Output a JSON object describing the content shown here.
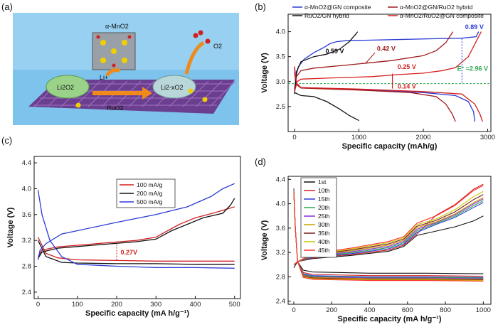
{
  "panel_labels": {
    "a": "(a)",
    "b": "(b)",
    "c": "(c)",
    "d": "(d)"
  },
  "illustration": {
    "catalyst": "α-MnO2",
    "li_ion": "Li+",
    "discharge_product_1": "Li2O2",
    "discharge_product_2": "Li2-xO2",
    "oxygen": "O2",
    "support": "RuO2"
  },
  "colors": {
    "blue": "#2a3bd6",
    "red": "#d42020",
    "darkred": "#a01a1a",
    "black": "#111111",
    "green": "#2fa84f"
  },
  "chart_data": [
    {
      "id": "b",
      "type": "line",
      "xlabel": "Specific capacity (mAh/g)",
      "ylabel": "Voltage (V)",
      "xlim": [
        -100,
        3050
      ],
      "ylim": [
        2.0,
        4.35
      ],
      "xticks": [
        0,
        1000,
        2000,
        3000
      ],
      "yticks": [
        2.5,
        3.0,
        3.5,
        4.0
      ],
      "legend": [
        {
          "name": "α-MnO2@GN composite",
          "color": "#2a3bd6"
        },
        {
          "name": "α-MnO2@GN/RuO2 hybrid",
          "color": "#a01a1a"
        },
        {
          "name": "RuO2/GN hybrid",
          "color": "#111111"
        },
        {
          "name": "α-MnO2/RuO2@GN composite",
          "color": "#d42020"
        }
      ],
      "series": [
        {
          "name": "α-MnO2@GN composite (charge)",
          "color": "#2a3bd6",
          "points": [
            [
              0,
              2.82
            ],
            [
              20,
              3.1
            ],
            [
              60,
              3.3
            ],
            [
              150,
              3.45
            ],
            [
              300,
              3.58
            ],
            [
              450,
              3.68
            ],
            [
              550,
              3.76
            ],
            [
              650,
              3.8
            ],
            [
              800,
              3.82
            ],
            [
              1500,
              3.84
            ],
            [
              2200,
              3.86
            ],
            [
              2600,
              3.87
            ],
            [
              2820,
              3.9
            ],
            [
              2860,
              4.0
            ]
          ]
        },
        {
          "name": "α-MnO2@GN composite (discharge)",
          "color": "#2a3bd6",
          "points": [
            [
              0,
              3.2
            ],
            [
              20,
              2.95
            ],
            [
              100,
              2.88
            ],
            [
              1000,
              2.84
            ],
            [
              2000,
              2.78
            ],
            [
              2500,
              2.72
            ],
            [
              2700,
              2.6
            ],
            [
              2780,
              2.4
            ],
            [
              2800,
              2.2
            ]
          ]
        },
        {
          "name": "α-MnO2@GN/RuO2 hybrid (charge)",
          "color": "#a01a1a",
          "points": [
            [
              0,
              2.85
            ],
            [
              30,
              3.1
            ],
            [
              100,
              3.22
            ],
            [
              300,
              3.27
            ],
            [
              800,
              3.33
            ],
            [
              1500,
              3.42
            ],
            [
              2000,
              3.52
            ],
            [
              2200,
              3.62
            ],
            [
              2350,
              3.78
            ],
            [
              2420,
              3.92
            ],
            [
              2460,
              4.0
            ]
          ]
        },
        {
          "name": "α-MnO2@GN/RuO2 hybrid (discharge)",
          "color": "#a01a1a",
          "points": [
            [
              0,
              3.3
            ],
            [
              20,
              2.95
            ],
            [
              100,
              2.87
            ],
            [
              1000,
              2.83
            ],
            [
              1800,
              2.78
            ],
            [
              2200,
              2.7
            ],
            [
              2350,
              2.55
            ],
            [
              2450,
              2.35
            ],
            [
              2500,
              2.2
            ]
          ]
        },
        {
          "name": "RuO2/GN hybrid (charge)",
          "color": "#111111",
          "points": [
            [
              0,
              2.75
            ],
            [
              30,
              3.2
            ],
            [
              100,
              3.4
            ],
            [
              300,
              3.5
            ],
            [
              500,
              3.55
            ],
            [
              700,
              3.65
            ],
            [
              850,
              3.8
            ],
            [
              950,
              3.95
            ],
            [
              980,
              4.0
            ]
          ]
        },
        {
          "name": "RuO2/GN hybrid (discharge)",
          "color": "#111111",
          "points": [
            [
              0,
              2.78
            ],
            [
              100,
              2.72
            ],
            [
              300,
              2.7
            ],
            [
              500,
              2.6
            ],
            [
              700,
              2.45
            ],
            [
              850,
              2.32
            ],
            [
              1000,
              2.22
            ]
          ]
        },
        {
          "name": "α-MnO2/RuO2@GN composite (charge)",
          "color": "#d42020",
          "points": [
            [
              0,
              2.8
            ],
            [
              40,
              3.0
            ],
            [
              100,
              3.05
            ],
            [
              500,
              3.07
            ],
            [
              1200,
              3.1
            ],
            [
              1600,
              3.14
            ],
            [
              2000,
              3.17
            ],
            [
              2300,
              3.22
            ],
            [
              2500,
              3.28
            ],
            [
              2700,
              3.5
            ],
            [
              2800,
              3.75
            ],
            [
              2900,
              4.0
            ]
          ]
        },
        {
          "name": "α-MnO2/RuO2@GN composite (discharge)",
          "color": "#d42020",
          "points": [
            [
              0,
              3.3
            ],
            [
              30,
              2.97
            ],
            [
              100,
              2.88
            ],
            [
              1000,
              2.85
            ],
            [
              2000,
              2.8
            ],
            [
              2600,
              2.75
            ],
            [
              2800,
              2.55
            ],
            [
              2880,
              2.35
            ],
            [
              2920,
              2.2
            ]
          ]
        }
      ],
      "reference_line": {
        "y": 2.96,
        "label": "E° =2.96 V",
        "color": "#2fa84f"
      },
      "annotations": [
        {
          "text": "0.89 V",
          "x": 2650,
          "y": 4.05,
          "color": "#2a3bd6"
        },
        {
          "text": "0.59 V",
          "x": 480,
          "y": 3.57,
          "color": "#111111"
        },
        {
          "text": "0.42 V",
          "x": 1280,
          "y": 3.62,
          "color": "#a01a1a"
        },
        {
          "text": "0.25 V",
          "x": 1600,
          "y": 3.25,
          "color": "#d42020"
        },
        {
          "text": "0.14 V",
          "x": 1600,
          "y": 2.86,
          "color": "#d42020"
        }
      ]
    },
    {
      "id": "c",
      "type": "line",
      "xlabel": "Specific capacity (mA h/g⁻¹)",
      "ylabel": "Voltage (V)",
      "xlim": [
        -10,
        515
      ],
      "ylim": [
        2.3,
        4.5
      ],
      "xticks": [
        0,
        100,
        200,
        300,
        400,
        500
      ],
      "yticks": [
        2.4,
        2.8,
        3.2,
        3.6,
        4.0,
        4.4
      ],
      "legend": [
        {
          "name": "100 mA/g",
          "color": "#d42020"
        },
        {
          "name": "200 mA/g",
          "color": "#111111"
        },
        {
          "name": "500 mA/g",
          "color": "#2a3bd6"
        }
      ],
      "series": [
        {
          "name": "100 mA/g (charge)",
          "color": "#d42020",
          "points": [
            [
              0,
              2.95
            ],
            [
              10,
              3.05
            ],
            [
              50,
              3.1
            ],
            [
              150,
              3.15
            ],
            [
              250,
              3.2
            ],
            [
              300,
              3.25
            ],
            [
              330,
              3.35
            ],
            [
              360,
              3.45
            ],
            [
              400,
              3.55
            ],
            [
              450,
              3.63
            ],
            [
              500,
              3.72
            ]
          ]
        },
        {
          "name": "100 mA/g (discharge)",
          "color": "#d42020",
          "points": [
            [
              0,
              3.25
            ],
            [
              20,
              3.0
            ],
            [
              50,
              2.93
            ],
            [
              100,
              2.9
            ],
            [
              200,
              2.89
            ],
            [
              300,
              2.88
            ],
            [
              400,
              2.88
            ],
            [
              500,
              2.88
            ]
          ]
        },
        {
          "name": "200 mA/g (charge)",
          "color": "#111111",
          "points": [
            [
              0,
              2.92
            ],
            [
              10,
              3.02
            ],
            [
              50,
              3.08
            ],
            [
              150,
              3.13
            ],
            [
              250,
              3.18
            ],
            [
              300,
              3.22
            ],
            [
              340,
              3.35
            ],
            [
              380,
              3.45
            ],
            [
              420,
              3.55
            ],
            [
              470,
              3.62
            ],
            [
              490,
              3.75
            ],
            [
              500,
              3.85
            ]
          ]
        },
        {
          "name": "200 mA/g (discharge)",
          "color": "#111111",
          "points": [
            [
              0,
              3.2
            ],
            [
              20,
              2.95
            ],
            [
              60,
              2.86
            ],
            [
              100,
              2.85
            ],
            [
              200,
              2.84
            ],
            [
              300,
              2.84
            ],
            [
              400,
              2.83
            ],
            [
              500,
              2.83
            ]
          ]
        },
        {
          "name": "500 mA/g (charge)",
          "color": "#2a3bd6",
          "points": [
            [
              0,
              2.9
            ],
            [
              5,
              3.05
            ],
            [
              20,
              3.15
            ],
            [
              60,
              3.3
            ],
            [
              100,
              3.35
            ],
            [
              200,
              3.48
            ],
            [
              300,
              3.6
            ],
            [
              380,
              3.72
            ],
            [
              440,
              3.88
            ],
            [
              470,
              4.0
            ],
            [
              500,
              4.08
            ]
          ]
        },
        {
          "name": "500 mA/g (discharge)",
          "color": "#2a3bd6",
          "points": [
            [
              0,
              3.98
            ],
            [
              10,
              3.6
            ],
            [
              30,
              3.2
            ],
            [
              60,
              2.95
            ],
            [
              100,
              2.83
            ],
            [
              200,
              2.8
            ],
            [
              300,
              2.78
            ],
            [
              400,
              2.78
            ],
            [
              500,
              2.77
            ]
          ]
        }
      ],
      "annotations": [
        {
          "text": "0.27V",
          "x": 210,
          "y": 2.98,
          "color": "#d42020"
        }
      ]
    },
    {
      "id": "d",
      "type": "line",
      "xlabel": "Specific capacity (mA h/g⁻¹)",
      "ylabel": "Voltage (V)",
      "xlim": [
        -30,
        1040
      ],
      "ylim": [
        2.35,
        4.45
      ],
      "xticks": [
        0,
        200,
        400,
        600,
        800,
        1000
      ],
      "yticks": [
        2.4,
        2.8,
        3.2,
        3.6,
        4.0,
        4.4
      ],
      "legend": [
        {
          "name": "1st",
          "color": "#111111"
        },
        {
          "name": "10th",
          "color": "#d42020"
        },
        {
          "name": "15th",
          "color": "#2a3bd6"
        },
        {
          "name": "20th",
          "color": "#2fa84f"
        },
        {
          "name": "25th",
          "color": "#8a2be2"
        },
        {
          "name": "30th",
          "color": "#c8a000"
        },
        {
          "name": "35th",
          "color": "#7a1a1a"
        },
        {
          "name": "40th",
          "color": "#c8c800"
        },
        {
          "name": "45th",
          "color": "#ff3030"
        }
      ],
      "charge_end": [
        3.8,
        4.32,
        4.02,
        4.05,
        4.08,
        4.1,
        4.15,
        4.2,
        4.3
      ],
      "discharge_plateau": [
        2.86,
        2.82,
        2.8,
        2.79,
        2.78,
        2.77,
        2.76,
        2.75,
        2.74
      ]
    }
  ]
}
